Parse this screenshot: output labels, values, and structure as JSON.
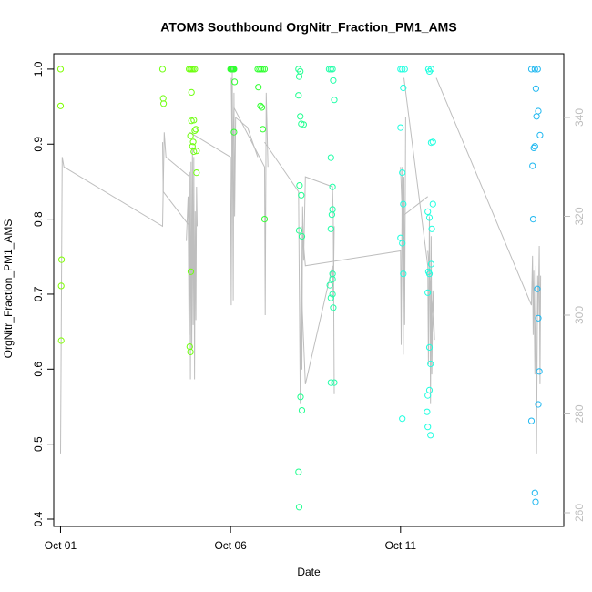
{
  "chart_data": {
    "type": "scatter",
    "title": "ATOM3 Southbound OrgNitr_Fraction_PM1_AMS",
    "xlabel": "Date",
    "ylabel": "OrgNitr_Fraction_PM1_AMS",
    "xlim_days": [
      0.8,
      15.8
    ],
    "ylim": [
      0.4,
      1.0
    ],
    "y2lim": [
      260,
      345
    ],
    "x_ticks": [
      {
        "day": 1,
        "label": "Oct 01"
      },
      {
        "day": 6,
        "label": "Oct 06"
      },
      {
        "day": 11,
        "label": "Oct 11"
      }
    ],
    "y_ticks": [
      {
        "value": 0.4,
        "label": "0.4"
      },
      {
        "value": 0.5,
        "label": "0.5"
      },
      {
        "value": 0.6,
        "label": "0.6"
      },
      {
        "value": 0.7,
        "label": "0.7"
      },
      {
        "value": 0.8,
        "label": "0.8"
      },
      {
        "value": 0.9,
        "label": "0.9"
      },
      {
        "value": 1.0,
        "label": "1.0"
      }
    ],
    "y2_ticks": [
      {
        "value": 260,
        "label": "260"
      },
      {
        "value": 280,
        "label": "280"
      },
      {
        "value": 300,
        "label": "300"
      },
      {
        "value": 320,
        "label": "320"
      },
      {
        "value": 340,
        "label": "340"
      }
    ],
    "colors": {
      "secondary_line": "#bebebe",
      "axis": "#000000",
      "secondary_axis": "#bebebe"
    },
    "series": [
      {
        "color": "#7FFF00",
        "points": [
          [
            1.0,
            1.0
          ],
          [
            1.0,
            0.951
          ],
          [
            1.03,
            0.746
          ],
          [
            1.02,
            0.711
          ],
          [
            1.02,
            0.638
          ]
        ]
      },
      {
        "color": "#6FFF10",
        "points": [
          [
            4.0,
            1.0
          ],
          [
            4.02,
            0.961
          ],
          [
            4.03,
            0.954
          ],
          [
            4.78,
            1.0
          ],
          [
            4.82,
            1.0
          ],
          [
            4.86,
            1.0
          ],
          [
            4.9,
            1.0
          ],
          [
            4.95,
            1.0
          ],
          [
            4.85,
            0.969
          ],
          [
            4.85,
            0.931
          ],
          [
            4.82,
            0.911
          ],
          [
            4.9,
            0.903
          ],
          [
            4.88,
            0.897
          ],
          [
            4.92,
            0.89
          ],
          [
            4.95,
            0.918
          ],
          [
            4.98,
            0.92
          ],
          [
            5.0,
            0.862
          ],
          [
            5.0,
            0.891
          ],
          [
            4.83,
            0.73
          ],
          [
            4.8,
            0.63
          ],
          [
            4.82,
            0.623
          ],
          [
            4.92,
            0.932
          ]
        ]
      },
      {
        "color": "#30FF30",
        "points": [
          [
            6.0,
            1.0
          ],
          [
            6.02,
            1.0
          ],
          [
            6.04,
            1.0
          ],
          [
            6.06,
            1.0
          ],
          [
            6.08,
            1.0
          ],
          [
            6.1,
            1.0
          ],
          [
            6.12,
            0.983
          ],
          [
            6.1,
            0.916
          ],
          [
            6.8,
            1.0
          ],
          [
            6.85,
            1.0
          ],
          [
            6.9,
            1.0
          ],
          [
            6.95,
            1.0
          ],
          [
            7.0,
            1.0
          ],
          [
            6.82,
            0.976
          ],
          [
            6.88,
            0.951
          ],
          [
            6.92,
            0.949
          ],
          [
            6.95,
            0.92
          ],
          [
            7.0,
            0.8
          ]
        ]
      },
      {
        "color": "#20FF90",
        "points": [
          [
            8.0,
            1.0
          ],
          [
            8.05,
            0.997
          ],
          [
            8.02,
            0.99
          ],
          [
            8.0,
            0.965
          ],
          [
            8.05,
            0.937
          ],
          [
            8.08,
            0.927
          ],
          [
            8.15,
            0.926
          ],
          [
            8.03,
            0.845
          ],
          [
            8.08,
            0.832
          ],
          [
            8.02,
            0.785
          ],
          [
            8.1,
            0.777
          ],
          [
            8.06,
            0.563
          ],
          [
            8.1,
            0.545
          ],
          [
            8.0,
            0.463
          ],
          [
            8.02,
            0.416
          ]
        ]
      },
      {
        "color": "#20FFA8",
        "points": [
          [
            8.9,
            1.0
          ],
          [
            8.95,
            1.0
          ],
          [
            9.0,
            1.0
          ],
          [
            9.02,
            0.985
          ],
          [
            9.05,
            0.959
          ],
          [
            8.95,
            0.882
          ],
          [
            9.0,
            0.843
          ],
          [
            9.0,
            0.813
          ],
          [
            8.98,
            0.806
          ],
          [
            8.95,
            0.787
          ],
          [
            9.0,
            0.727
          ],
          [
            9.0,
            0.72
          ],
          [
            8.92,
            0.712
          ],
          [
            9.0,
            0.7
          ],
          [
            8.95,
            0.695
          ],
          [
            9.02,
            0.682
          ],
          [
            8.95,
            0.582
          ],
          [
            9.05,
            0.582
          ]
        ]
      },
      {
        "color": "#20FFE0",
        "points": [
          [
            11.0,
            1.0
          ],
          [
            11.05,
            1.0
          ],
          [
            11.12,
            1.0
          ],
          [
            11.08,
            0.975
          ],
          [
            11.0,
            0.922
          ],
          [
            11.05,
            0.862
          ],
          [
            11.08,
            0.82
          ],
          [
            11.0,
            0.775
          ],
          [
            11.05,
            0.768
          ],
          [
            11.08,
            0.727
          ],
          [
            11.05,
            0.534
          ],
          [
            11.82,
            1.0
          ],
          [
            11.85,
            0.997
          ],
          [
            11.9,
            1.0
          ],
          [
            11.9,
            0.902
          ],
          [
            11.95,
            0.903
          ],
          [
            11.95,
            0.82
          ],
          [
            11.8,
            0.81
          ],
          [
            11.85,
            0.802
          ],
          [
            11.92,
            0.787
          ],
          [
            11.9,
            0.74
          ],
          [
            11.82,
            0.73
          ],
          [
            11.85,
            0.727
          ],
          [
            11.8,
            0.702
          ],
          [
            11.85,
            0.629
          ],
          [
            11.88,
            0.607
          ],
          [
            11.85,
            0.572
          ],
          [
            11.8,
            0.565
          ],
          [
            11.78,
            0.543
          ],
          [
            11.8,
            0.523
          ],
          [
            11.88,
            0.512
          ]
        ]
      },
      {
        "color": "#20B8F0",
        "points": [
          [
            14.85,
            1.0
          ],
          [
            14.95,
            1.0
          ],
          [
            15.03,
            1.0
          ],
          [
            14.98,
            0.974
          ],
          [
            15.05,
            0.944
          ],
          [
            15.0,
            0.937
          ],
          [
            15.1,
            0.912
          ],
          [
            14.95,
            0.897
          ],
          [
            14.92,
            0.895
          ],
          [
            14.88,
            0.871
          ],
          [
            14.9,
            0.8
          ],
          [
            15.02,
            0.707
          ],
          [
            15.05,
            0.668
          ],
          [
            15.08,
            0.597
          ],
          [
            15.05,
            0.553
          ],
          [
            14.85,
            0.531
          ],
          [
            14.95,
            0.435
          ],
          [
            14.97,
            0.423
          ]
        ]
      }
    ],
    "secondary_line": {
      "axis": "right",
      "segments": [
        [
          [
            1.0,
            272
          ],
          [
            1.05,
            332
          ],
          [
            1.1,
            330
          ],
          [
            4.0,
            318
          ],
          [
            4.05,
            337
          ],
          [
            4.1,
            332
          ],
          [
            4.8,
            328
          ]
        ],
        [
          [
            4.0,
            335
          ],
          [
            4.02,
            325
          ],
          [
            4.8,
            318
          ]
        ],
        [
          [
            4.7,
            315
          ],
          [
            4.75,
            324
          ],
          [
            4.78,
            296
          ],
          [
            4.8,
            329
          ],
          [
            4.82,
            287
          ],
          [
            4.84,
            331
          ],
          [
            4.86,
            293
          ],
          [
            4.88,
            334
          ],
          [
            4.9,
            298
          ],
          [
            4.92,
            332
          ],
          [
            4.94,
            287
          ],
          [
            4.96,
            321
          ],
          [
            4.98,
            299
          ],
          [
            5.0,
            326
          ],
          [
            5.02,
            318
          ]
        ],
        [
          [
            4.8,
            337
          ],
          [
            6.0,
            332
          ],
          [
            6.02,
            302
          ],
          [
            6.05,
            350
          ],
          [
            6.08,
            303
          ],
          [
            6.1,
            345
          ],
          [
            6.12,
            320
          ],
          [
            6.15,
            340
          ],
          [
            6.5,
            338
          ],
          [
            6.8,
            332
          ]
        ],
        [
          [
            6.02,
            348
          ],
          [
            6.05,
            330
          ],
          [
            6.1,
            342
          ],
          [
            7.0,
            330
          ],
          [
            7.02,
            300
          ],
          [
            7.05,
            345
          ],
          [
            7.1,
            330
          ]
        ],
        [
          [
            7.0,
            335
          ],
          [
            8.0,
            325
          ],
          [
            8.05,
            282
          ],
          [
            8.08,
            318
          ],
          [
            8.1,
            289
          ],
          [
            8.12,
            322
          ],
          [
            8.15,
            311
          ],
          [
            8.2,
            328
          ],
          [
            9.0,
            326
          ],
          [
            9.02,
            320
          ],
          [
            9.05,
            284
          ]
        ],
        [
          [
            8.1,
            303
          ],
          [
            8.2,
            286
          ],
          [
            9.0,
            310
          ],
          [
            9.02,
            303
          ],
          [
            9.05,
            318
          ]
        ],
        [
          [
            8.15,
            314
          ],
          [
            8.2,
            310
          ],
          [
            11.0,
            313
          ],
          [
            11.02,
            294
          ],
          [
            11.05,
            330
          ],
          [
            11.08,
            292
          ],
          [
            11.1,
            328
          ],
          [
            11.12,
            298
          ],
          [
            11.15,
            340
          ]
        ],
        [
          [
            11.1,
            348
          ],
          [
            11.8,
            310
          ],
          [
            11.82,
            290
          ],
          [
            11.85,
            320
          ],
          [
            11.88,
            282
          ],
          [
            11.9,
            316
          ],
          [
            11.92,
            288
          ],
          [
            11.95,
            305
          ],
          [
            12.0,
            295
          ],
          [
            11.8,
            313
          ]
        ],
        [
          [
            11.0,
            330
          ],
          [
            11.05,
            320
          ],
          [
            11.8,
            324
          ]
        ],
        [
          [
            12.05,
            348
          ],
          [
            14.85,
            302
          ],
          [
            14.88,
            312
          ],
          [
            14.9,
            296
          ],
          [
            14.92,
            309
          ],
          [
            14.95,
            288
          ],
          [
            14.98,
            310
          ],
          [
            15.0,
            272
          ],
          [
            15.03,
            308
          ],
          [
            15.05,
            300
          ],
          [
            15.08,
            314
          ],
          [
            15.1,
            286
          ],
          [
            15.12,
            308
          ]
        ]
      ]
    }
  }
}
